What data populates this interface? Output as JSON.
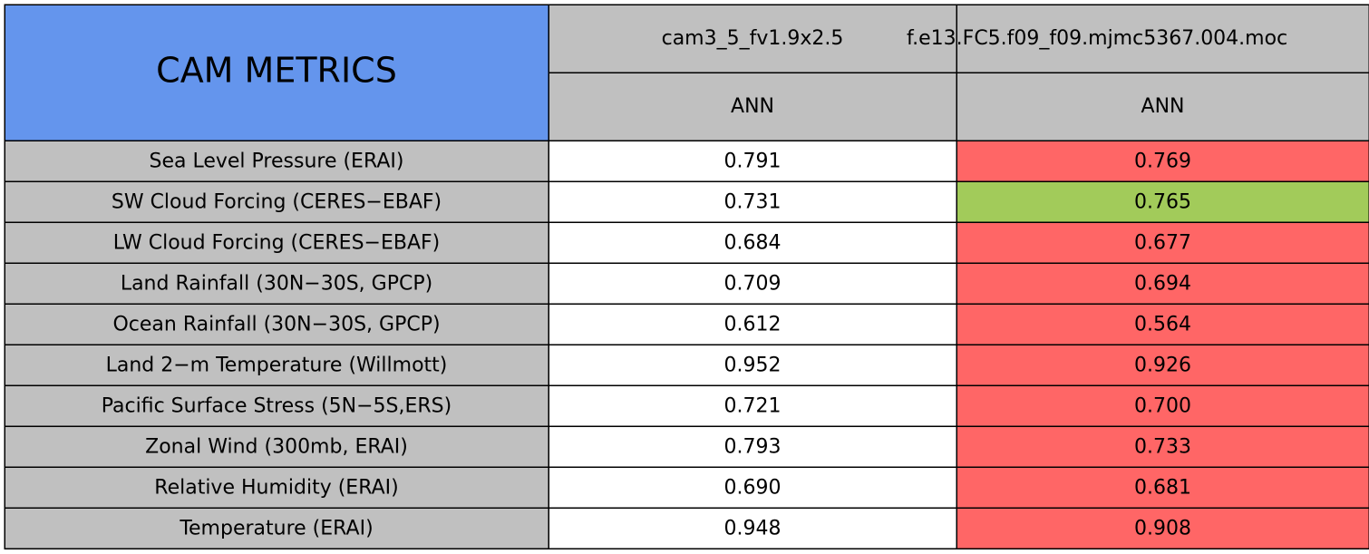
{
  "header": {
    "title": "CAM METRICS",
    "columns": [
      {
        "name": "cam3_5_fv1.9x2.5",
        "season": "ANN"
      },
      {
        "name": "f.e13.FC5.f09_f09.mjmc5367.004.moc",
        "season": "ANN"
      }
    ]
  },
  "table": {
    "rows": [
      {
        "label": "Sea Level Pressure (ERAI)",
        "values": [
          "0.791",
          "0.769"
        ],
        "colors": [
          "#ffffff",
          "#ff6666"
        ]
      },
      {
        "label": "SW Cloud Forcing (CERES−EBAF)",
        "values": [
          "0.731",
          "0.765"
        ],
        "colors": [
          "#ffffff",
          "#a2cb5a"
        ]
      },
      {
        "label": "LW Cloud Forcing (CERES−EBAF)",
        "values": [
          "0.684",
          "0.677"
        ],
        "colors": [
          "#ffffff",
          "#ff6666"
        ]
      },
      {
        "label": "Land Rainfall (30N−30S, GPCP)",
        "values": [
          "0.709",
          "0.694"
        ],
        "colors": [
          "#ffffff",
          "#ff6666"
        ]
      },
      {
        "label": "Ocean Rainfall (30N−30S, GPCP)",
        "values": [
          "0.612",
          "0.564"
        ],
        "colors": [
          "#ffffff",
          "#ff6666"
        ]
      },
      {
        "label": "Land 2−m Temperature (Willmott)",
        "values": [
          "0.952",
          "0.926"
        ],
        "colors": [
          "#ffffff",
          "#ff6666"
        ]
      },
      {
        "label": "Pacific Surface Stress (5N−5S,ERS)",
        "values": [
          "0.721",
          "0.700"
        ],
        "colors": [
          "#ffffff",
          "#ff6666"
        ]
      },
      {
        "label": "Zonal Wind (300mb, ERAI)",
        "values": [
          "0.793",
          "0.733"
        ],
        "colors": [
          "#ffffff",
          "#ff6666"
        ]
      },
      {
        "label": "Relative Humidity (ERAI)",
        "values": [
          "0.690",
          "0.681"
        ],
        "colors": [
          "#ffffff",
          "#ff6666"
        ]
      },
      {
        "label": "Temperature (ERAI)",
        "values": [
          "0.948",
          "0.908"
        ],
        "colors": [
          "#ffffff",
          "#ff6666"
        ]
      }
    ]
  }
}
